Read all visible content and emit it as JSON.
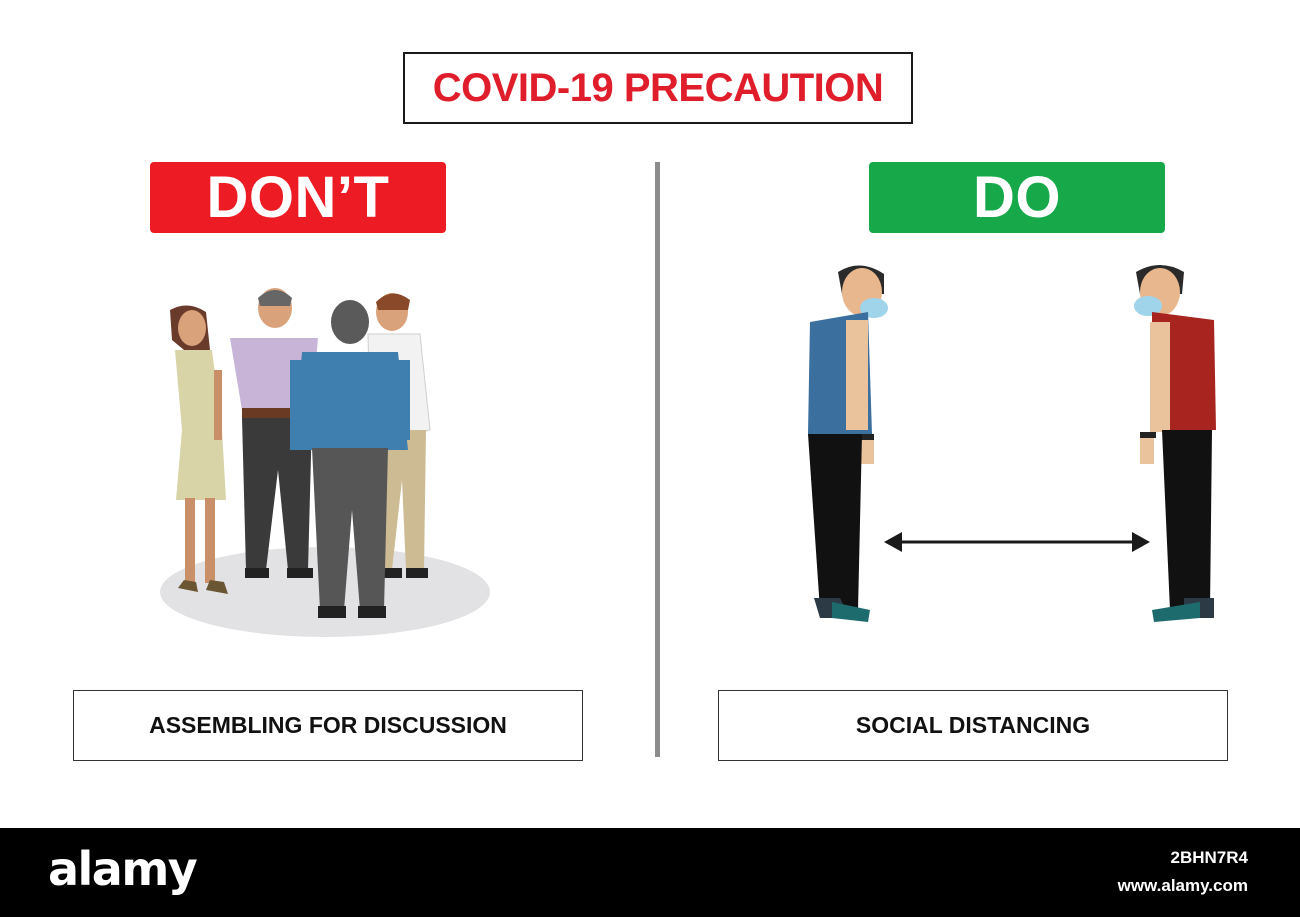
{
  "poster": {
    "title": "COVID-19 PRECAUTION",
    "title_color": "#e01e2b"
  },
  "left_panel": {
    "badge_label": "DON’T",
    "badge_color": "#ed1c24",
    "caption": "ASSEMBLING FOR DISCUSSION",
    "illustration_icon": "people-group-icon"
  },
  "right_panel": {
    "badge_label": "DO",
    "badge_color": "#17a84a",
    "caption": "SOCIAL DISTANCING",
    "illustration_icon": "social-distance-icon"
  },
  "footer": {
    "logo": "alamy",
    "image_id": "2BHN7R4",
    "url": "www.alamy.com"
  }
}
